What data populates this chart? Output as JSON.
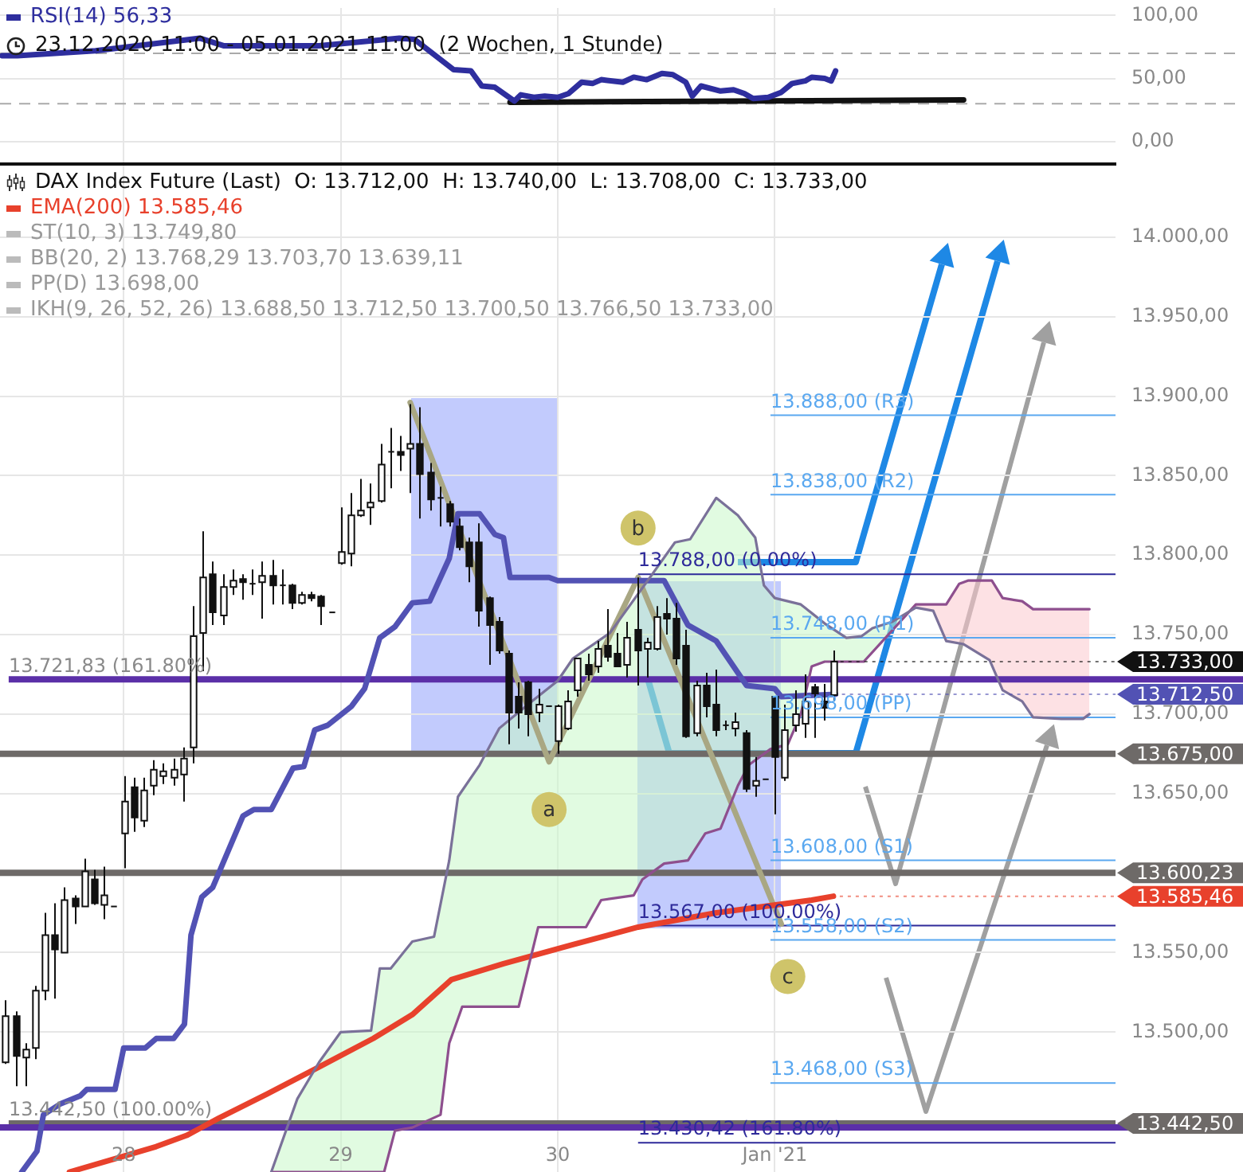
{
  "chart_data": [
    {
      "type": "line",
      "subtitle": "23.12.2020 11:00 - 05.01.2021 11:00  (2 Wochen, 1 Stunde)",
      "series": [
        {
          "name": "RSI(14) 56,33",
          "color": "#2e2e9e",
          "x": [
            27.44,
            27.51,
            27.87,
            28.35,
            28.46,
            28.9,
            29.27,
            29.34,
            29.43,
            29.52,
            29.6,
            29.65,
            29.71,
            29.8,
            29.83,
            29.89,
            29.94,
            30,
            30.05,
            30.11,
            30.16,
            30.2,
            30.3,
            30.35,
            30.41,
            30.48,
            30.53,
            30.59,
            30.62,
            30.66,
            30.75,
            30.81,
            30.86,
            30.9,
            30.97,
            31.03,
            31.08,
            31.14,
            31.17,
            31.23,
            31.26,
            31.28
          ],
          "values": [
            68,
            68,
            72,
            82,
            76,
            76,
            82,
            81,
            69,
            57,
            56,
            44,
            43,
            32,
            37,
            35,
            36,
            35,
            38,
            47,
            46,
            49,
            47,
            51,
            49,
            54,
            53,
            47,
            36,
            44,
            40,
            41,
            38,
            34,
            35,
            39,
            46,
            48,
            51,
            50,
            48,
            56
          ]
        },
        {
          "type": "line",
          "color": "#111111",
          "x": [
            29.78,
            31.87
          ],
          "values": [
            31,
            33
          ]
        }
      ],
      "xlim": [
        27.43,
        32.57
      ],
      "xticks": [
        28,
        29,
        30,
        31
      ],
      "ylim": [
        -18,
        106
      ],
      "yticks": [
        {
          "value": 0,
          "label": "0,00"
        },
        {
          "value": 50,
          "label": "50,00"
        },
        {
          "value": 100,
          "label": "100,00"
        }
      ],
      "ref_lines": [
        {
          "axis": "y",
          "value": 70,
          "line_style": "dashed",
          "color": "#aaaaaa"
        },
        {
          "axis": "y",
          "value": 30,
          "line_style": "dashed",
          "color": "#aaaaaa"
        }
      ],
      "grid": true,
      "tick_labels": "y",
      "legend": "top left"
    },
    {
      "type": "candlestick",
      "title": "DAX Index Future (Last)  O: 13.712,00  H: 13.740,00  L: 13.708,00  C: 13.733,00",
      "color": "#111111",
      "x": [
        27.455,
        27.5,
        27.545,
        27.591,
        27.636,
        27.682,
        27.727,
        27.773,
        27.818,
        27.864,
        27.909,
        27.955,
        28,
        28.045,
        28.091,
        28.136,
        28.182,
        28.227,
        28.273,
        28.318,
        28.364,
        28.409,
        28.455,
        28.5,
        28.545,
        28.591,
        28.636,
        28.682,
        28.727,
        28.773,
        28.818,
        28.864,
        28.909,
        28.955,
        29,
        29.045,
        29.091,
        29.136,
        29.182,
        29.227,
        29.273,
        29.318,
        29.364,
        29.409,
        29.455,
        29.5,
        29.545,
        29.591,
        29.636,
        29.682,
        29.727,
        29.773,
        29.818,
        29.864,
        29.909,
        29.955,
        30,
        30.045,
        30.091,
        30.136,
        30.182,
        30.227,
        30.273,
        30.318,
        30.364,
        30.409,
        30.455,
        30.5,
        30.545,
        30.591,
        30.636,
        30.682,
        30.727,
        30.773,
        30.818,
        30.864,
        30.909,
        30.955,
        31,
        31.045,
        31.091,
        31.136,
        31.182,
        31.227,
        31.273
      ],
      "colors": [
        "#ffffff",
        "#111111",
        "#ffffff",
        "#ffffff",
        "#ffffff",
        "#111111",
        "#ffffff",
        "#111111",
        "#ffffff",
        "#111111",
        "#ffffff",
        "#111111",
        "#ffffff",
        "#111111",
        "#ffffff",
        "#ffffff",
        "#ffffff",
        "#ffffff",
        "#ffffff",
        "#ffffff",
        "#ffffff",
        "#111111",
        "#ffffff",
        "#ffffff",
        "#111111",
        "#111111",
        "#ffffff",
        "#111111",
        "#111111",
        "#111111",
        "#ffffff",
        "#111111",
        "#111111",
        "#111111",
        "#ffffff",
        "#ffffff",
        "#ffffff",
        "#ffffff",
        "#ffffff",
        "#111111",
        "#111111",
        "#ffffff",
        "#111111",
        "#111111",
        "#111111",
        "#111111",
        "#111111",
        "#111111",
        "#111111",
        "#111111",
        "#111111",
        "#111111",
        "#111111",
        "#111111",
        "#ffffff",
        "#111111",
        "#ffffff",
        "#ffffff",
        "#ffffff",
        "#111111",
        "#ffffff",
        "#111111",
        "#111111",
        "#ffffff",
        "#111111",
        "#ffffff",
        "#ffffff",
        "#111111",
        "#111111",
        "#111111",
        "#ffffff",
        "#111111",
        "#111111",
        "#111111",
        "#ffffff",
        "#111111",
        "#ffffff",
        "#111111",
        "#111111",
        "#ffffff",
        "#ffffff",
        "#ffffff",
        "#111111",
        "#111111",
        "#ffffff"
      ],
      "ohlc": [
        [
          13481,
          13520,
          13480,
          13510
        ],
        [
          13510,
          13513,
          13466,
          13485
        ],
        [
          13484,
          13493,
          13466,
          13489
        ],
        [
          13490,
          13529,
          13483,
          13526
        ],
        [
          13526,
          13575,
          13520,
          13561
        ],
        [
          13561,
          13581,
          13521,
          13552
        ],
        [
          13550,
          13591,
          13550,
          13583
        ],
        [
          13584,
          13586,
          13568,
          13579
        ],
        [
          13579,
          13609,
          13579,
          13601
        ],
        [
          13596,
          13602,
          13580,
          13581
        ],
        [
          13580,
          13604,
          13571,
          13586
        ],
        [
          13579,
          13579,
          13579,
          13579
        ],
        [
          13625,
          13661,
          13603,
          13645
        ],
        [
          13654,
          13660,
          13626,
          13635
        ],
        [
          13633,
          13660,
          13629,
          13652
        ],
        [
          13655,
          13671,
          13649,
          13665
        ],
        [
          13661,
          13669,
          13656,
          13664
        ],
        [
          13660,
          13672,
          13655,
          13665
        ],
        [
          13662,
          13679,
          13645,
          13672
        ],
        [
          13679,
          13768,
          13669,
          13749
        ],
        [
          13751,
          13815,
          13727,
          13786
        ],
        [
          13788,
          13796,
          13756,
          13764
        ],
        [
          13762,
          13788,
          13756,
          13780
        ],
        [
          13780,
          13791,
          13775,
          13784
        ],
        [
          13785,
          13788,
          13772,
          13783
        ],
        [
          13782,
          13791,
          13775,
          13782
        ],
        [
          13783,
          13796,
          13760,
          13787
        ],
        [
          13787,
          13797,
          13769,
          13781
        ],
        [
          13781,
          13791,
          13769,
          13781
        ],
        [
          13781,
          13782,
          13766,
          13770
        ],
        [
          13770,
          13777,
          13769,
          13775
        ],
        [
          13775,
          13777,
          13771,
          13773
        ],
        [
          13774,
          13775,
          13756,
          13768
        ],
        [
          13764,
          13764,
          13764,
          13764
        ],
        [
          13795,
          13830,
          13794,
          13802
        ],
        [
          13801,
          13839,
          13793,
          13825
        ],
        [
          13825,
          13848,
          13824,
          13828
        ],
        [
          13830,
          13845,
          13819,
          13833
        ],
        [
          13834,
          13870,
          13833,
          13857
        ],
        [
          13865,
          13880,
          13842,
          13865
        ],
        [
          13865,
          13875,
          13853,
          13863
        ],
        [
          13867,
          13895,
          13839,
          13870
        ],
        [
          13870,
          13893,
          13823,
          13851
        ],
        [
          13852,
          13858,
          13828,
          13835
        ],
        [
          13836,
          13843,
          13818,
          13836
        ],
        [
          13832,
          13834,
          13818,
          13821
        ],
        [
          13818,
          13823,
          13803,
          13805
        ],
        [
          13808,
          13811,
          13783,
          13793
        ],
        [
          13808,
          13820,
          13755,
          13765
        ],
        [
          13773,
          13774,
          13731,
          13756
        ],
        [
          13758,
          13761,
          13738,
          13740
        ],
        [
          13738,
          13740,
          13681,
          13701
        ],
        [
          13711,
          13720,
          13691,
          13701
        ],
        [
          13720,
          13721,
          13686,
          13700
        ],
        [
          13701,
          13716,
          13695,
          13706
        ],
        [
          13705,
          13705,
          13705,
          13705
        ],
        [
          13683,
          13706,
          13675,
          13705
        ],
        [
          13691,
          13715,
          13690,
          13708
        ],
        [
          13715,
          13735,
          13711,
          13735
        ],
        [
          13731,
          13738,
          13721,
          13725
        ],
        [
          13730,
          13746,
          13726,
          13741
        ],
        [
          13743,
          13766,
          13733,
          13736
        ],
        [
          13738,
          13751,
          13730,
          13730
        ],
        [
          13731,
          13758,
          13723,
          13748
        ],
        [
          13753,
          13786,
          13718,
          13740
        ],
        [
          13741,
          13748,
          13723,
          13745
        ],
        [
          13741,
          13768,
          13740,
          13761
        ],
        [
          13763,
          13773,
          13750,
          13760
        ],
        [
          13760,
          13770,
          13731,
          13735
        ],
        [
          13743,
          13753,
          13685,
          13686
        ],
        [
          13688,
          13721,
          13686,
          13718
        ],
        [
          13718,
          13726,
          13698,
          13705
        ],
        [
          13706,
          13728,
          13686,
          13690
        ],
        [
          13693,
          13696,
          13690,
          13693
        ],
        [
          13691,
          13701,
          13686,
          13695
        ],
        [
          13688,
          13690,
          13651,
          13653
        ],
        [
          13655,
          13673,
          13648,
          13658
        ],
        [
          13659,
          13659,
          13659,
          13659
        ],
        [
          13711,
          13711,
          13637,
          13673
        ],
        [
          13660,
          13706,
          13658,
          13690
        ],
        [
          13693,
          13715,
          13689,
          13700
        ],
        [
          13694,
          13725,
          13685,
          13708
        ],
        [
          13717,
          13719,
          13685,
          13713
        ],
        [
          13708,
          13719,
          13696,
          13704
        ],
        [
          13712,
          13740,
          13708,
          13733
        ]
      ],
      "series": [
        {
          "type": "line",
          "color": "#7a7199",
          "x": [
            28.68,
            28.8,
            28.9,
            29,
            29.14,
            29.18,
            29.23,
            29.33,
            29.43,
            29.5,
            29.54,
            29.64,
            29.73,
            29.88,
            30,
            30.07,
            30.24,
            30.42,
            30.54,
            30.61,
            30.73,
            30.83,
            30.91,
            30.95,
            31,
            31.12,
            31.23,
            31.33,
            31.4,
            31.45,
            31.54,
            31.65,
            31.73,
            31.79,
            31.87,
            31.99,
            32.05,
            32.14,
            32.19,
            32.32,
            32.42,
            32.45
          ],
          "values": [
            13412,
            13458,
            13481,
            13500,
            13501,
            13540,
            13540,
            13557,
            13560,
            13608,
            13648,
            13668,
            13691,
            13708,
            13721,
            13735,
            13751,
            13785,
            13808,
            13810,
            13836,
            13825,
            13811,
            13781,
            13773,
            13769,
            13757,
            13748,
            13749,
            13754,
            13758,
            13767,
            13765,
            13746,
            13744,
            13734,
            13715,
            13708,
            13698,
            13697,
            13697,
            13700
          ]
        },
        {
          "type": "line",
          "color": "#8e4f8e",
          "x": [
            28.68,
            29.2,
            29.25,
            29.33,
            29.46,
            29.5,
            29.56,
            29.82,
            29.91,
            30.13,
            30.2,
            30.35,
            30.39,
            30.49,
            30.6,
            30.68,
            30.75,
            30.83,
            30.88,
            30.98,
            31.06,
            31.12,
            31.17,
            31.23,
            31.41,
            31.51,
            31.65,
            31.79,
            31.85,
            31.89,
            32,
            32.05,
            32.14,
            32.19,
            32.45
          ],
          "values": [
            13412,
            13412,
            13438,
            13440,
            13448,
            13493,
            13516,
            13516,
            13566,
            13566,
            13583,
            13586,
            13596,
            13606,
            13608,
            13625,
            13628,
            13655,
            13668,
            13678,
            13681,
            13700,
            13730,
            13733,
            13733,
            13748,
            13769,
            13769,
            13782,
            13784,
            13784,
            13773,
            13771,
            13766,
            13766
          ]
        },
        {
          "name": "EMA(200) 13.585,46",
          "type": "line",
          "color": "#e8412c",
          "x": [
            27.75,
            27.95,
            28.15,
            28.29,
            28.44,
            28.66,
            28.9,
            29.15,
            29.33,
            29.51,
            29.75,
            30.07,
            30.37,
            30.73,
            31.17,
            31.27
          ],
          "values": [
            13412,
            13420,
            13428,
            13435,
            13446,
            13461,
            13478,
            13496,
            13511,
            13533,
            13543,
            13555,
            13566,
            13575,
            13583,
            13585.46
          ]
        },
        {
          "type": "line",
          "color": "#5252b4",
          "x": [
            27.53,
            27.6,
            27.63,
            27.71,
            27.8,
            27.83,
            27.96,
            28,
            28.1,
            28.15,
            28.23,
            28.28,
            28.31,
            28.36,
            28.41,
            28.55,
            28.6,
            28.68,
            28.78,
            28.83,
            28.88,
            28.94,
            29.05,
            29.11,
            29.18,
            29.25,
            29.33,
            29.41,
            29.5,
            29.54,
            29.64,
            29.71,
            29.75,
            29.78,
            29.96,
            30,
            30.49,
            30.6,
            30.73,
            30.87,
            31,
            31.03,
            31.28
          ],
          "values": [
            13412,
            13425,
            13448,
            13455,
            13460,
            13464,
            13464,
            13490,
            13490,
            13496,
            13496,
            13505,
            13561,
            13585,
            13591,
            13636,
            13640,
            13640,
            13666,
            13667,
            13690,
            13693,
            13705,
            13716,
            13748,
            13755,
            13770,
            13771,
            13798,
            13826,
            13826,
            13813,
            13811,
            13786,
            13786,
            13784,
            13784,
            13756,
            13746,
            13718,
            13716,
            13711,
            13712.5
          ]
        },
        {
          "type": "line",
          "color": "#a9a783",
          "x": [
            29.32,
            29.96,
            30.37,
            31.03
          ],
          "values": [
            13896,
            13670,
            13786,
            13568
          ]
        },
        {
          "type": "scatter",
          "marker": "circle",
          "color": "#cfc46a",
          "x": [
            29.96,
            30.37,
            31.06
          ],
          "values": [
            13640,
            13817,
            13535
          ],
          "value_labels": [
            "a",
            "b",
            "c"
          ]
        }
      ],
      "xlim": [
        27.43,
        32.57
      ],
      "xticks": [
        28,
        29,
        30,
        {
          "value": 31,
          "label": "Jan '21"
        }
      ],
      "ylim": [
        13412,
        14045
      ],
      "yticks": [
        {
          "value": 13500,
          "label": "13.500,00"
        },
        {
          "value": 13550,
          "label": "13.550,00"
        },
        {
          "value": 13650,
          "label": "13.650,00"
        },
        {
          "value": 13700,
          "label": "13.700,00"
        },
        {
          "value": 13750,
          "label": "13.750,00"
        },
        {
          "value": 13800,
          "label": "13.800,00"
        },
        {
          "value": 13850,
          "label": "13.850,00"
        },
        {
          "value": 13900,
          "label": "13.900,00"
        },
        {
          "value": 13950,
          "label": "13.950,00"
        },
        {
          "value": 14000,
          "label": "14.000,00"
        }
      ],
      "ref_lines": [
        {
          "axis": "y",
          "value": 13721.83,
          "color": "#5b2fa8"
        },
        {
          "axis": "y",
          "value": 13675,
          "label": "13.675,00",
          "color": "#6e6a68"
        },
        {
          "axis": "y",
          "value": 13600.23,
          "label": "13.600,23",
          "color": "#6e6a68"
        },
        {
          "axis": "y",
          "value": 13442.5,
          "label": "13.442,50",
          "color": "#6e6a68"
        },
        {
          "axis": "y",
          "value": 13440,
          "color": "#5b2fa8"
        },
        {
          "axis": "y",
          "value": 13788,
          "color": "#2e2a9a"
        },
        {
          "axis": "y",
          "value": 13567,
          "color": "#2e2a9a"
        },
        {
          "axis": "y",
          "value": 13430.42,
          "color": "#2e2a9a"
        },
        {
          "axis": "y",
          "value": 13888,
          "color": "#5aa8f0"
        },
        {
          "axis": "y",
          "value": 13838,
          "color": "#5aa8f0"
        },
        {
          "axis": "y",
          "value": 13748,
          "color": "#5aa8f0"
        },
        {
          "axis": "y",
          "value": 13698,
          "color": "#5aa8f0"
        },
        {
          "axis": "y",
          "value": 13608,
          "color": "#5aa8f0"
        },
        {
          "axis": "y",
          "value": 13558,
          "color": "#5aa8f0"
        },
        {
          "axis": "y",
          "value": 13468,
          "color": "#5aa8f0"
        }
      ],
      "annotations": [
        "ST(10, 3) 13.749,80",
        "BB(20, 2) 13.768,29 13.703,70 13.639,11",
        "PP(D) 13.698,00",
        "IKH(9, 26, 52, 26) 13.688,50 13.712,50 13.700,50 13.766,50 13.733,00",
        {
          "text": "13.721,83 (161.80%)",
          "x": 27.47,
          "y": 13721.83
        },
        {
          "text": "13.442,50 (100.00%)",
          "x": 27.47,
          "y": 13442.5
        },
        {
          "text": "13.788,00 (0.00%)",
          "x": 30.37,
          "y": 13788
        },
        {
          "text": "13.567,00 (100.00%)",
          "x": 30.37,
          "y": 13567
        },
        {
          "text": "13.430,42 (161.80%)",
          "x": 30.37,
          "y": 13430.42
        },
        {
          "text": "13.888,00 (R3)",
          "x": 30.98,
          "y": 13888
        },
        {
          "text": "13.838,00 (R2)",
          "x": 30.98,
          "y": 13838
        },
        {
          "text": "13.748,00 (R1)",
          "x": 30.98,
          "y": 13748
        },
        {
          "text": "13.698,00 (PP)",
          "x": 30.98,
          "y": 13698
        },
        {
          "text": "13.608,00 (S1)",
          "x": 30.98,
          "y": 13608
        },
        {
          "text": "13.558,00 (S2)",
          "x": 30.98,
          "y": 13558
        },
        {
          "text": "13.468,00 (S3)",
          "x": 30.98,
          "y": 13468
        },
        {
          "text": "13.733,00",
          "x": 31.273,
          "y": 13733
        },
        {
          "text": "13.712,50",
          "x": 31.28,
          "y": 13712.5
        },
        {
          "text": "13.585,46",
          "x": 31.27,
          "y": 13585.46
        }
      ],
      "grid": true,
      "legend": "top left"
    }
  ]
}
